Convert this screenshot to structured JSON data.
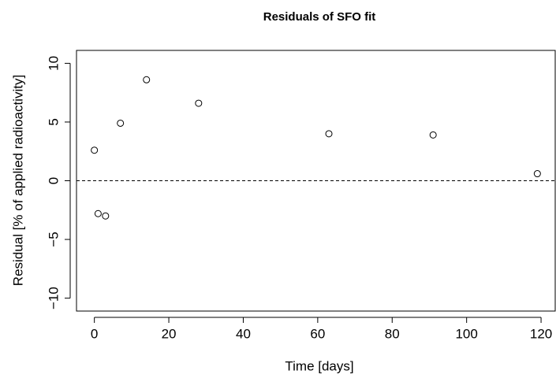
{
  "chart_data": {
    "type": "scatter",
    "title": "Residuals of SFO fit",
    "xlabel": "Time [days]",
    "ylabel": "Residual [% of applied radioactivity]",
    "x": [
      0,
      1,
      3,
      7,
      14,
      28,
      63,
      91,
      119
    ],
    "values": [
      2.6,
      -2.8,
      -3.0,
      4.9,
      8.6,
      6.6,
      4.0,
      3.9,
      0.6
    ],
    "color": "#000000",
    "xlim": [
      -4.8,
      123.8
    ],
    "ylim": [
      -11.1,
      11.1
    ],
    "xticks": [
      0,
      20,
      40,
      60,
      80,
      100,
      120
    ],
    "yticks": [
      {
        "value": -10,
        "label": "−10"
      },
      {
        "value": -5,
        "label": "−5"
      },
      0,
      5,
      10
    ],
    "reference_line": 0
  }
}
